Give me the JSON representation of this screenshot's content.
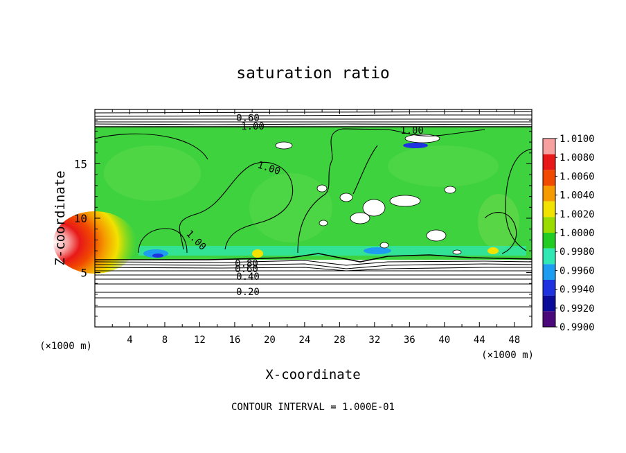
{
  "chart_data": {
    "type": "heatmap",
    "title": "saturation ratio",
    "xlabel": "X-coordinate",
    "ylabel": "Z-coordinate",
    "x_unit": "(×1000 m)",
    "z_unit": "(×1000 m)",
    "xlim": [
      0,
      50
    ],
    "ylim": [
      0,
      20
    ],
    "x_ticks": [
      4,
      8,
      12,
      16,
      20,
      24,
      28,
      32,
      36,
      40,
      44,
      48
    ],
    "y_ticks": [
      5,
      10,
      15
    ],
    "colorbar": {
      "levels": [
        "1.0100",
        "1.0080",
        "1.0060",
        "1.0040",
        "1.0020",
        "1.0000",
        "0.9980",
        "0.9960",
        "0.9940",
        "0.9920",
        "0.9900"
      ],
      "colors": [
        "#f7a0a0",
        "#e81818",
        "#f04a00",
        "#f59a00",
        "#f2e200",
        "#9bdc00",
        "#22cc22",
        "#2fe8b4",
        "#1e9cf0",
        "#1f32e0",
        "#0b0b9a",
        "#4a087a"
      ]
    },
    "contour_labels": [
      "0.60",
      "1.00",
      "1.00",
      "1.00",
      "1.00",
      "0.80",
      "0.60",
      "0.40",
      "0.20"
    ],
    "annotation": "CONTOUR INTERVAL = 1.000E-01"
  }
}
